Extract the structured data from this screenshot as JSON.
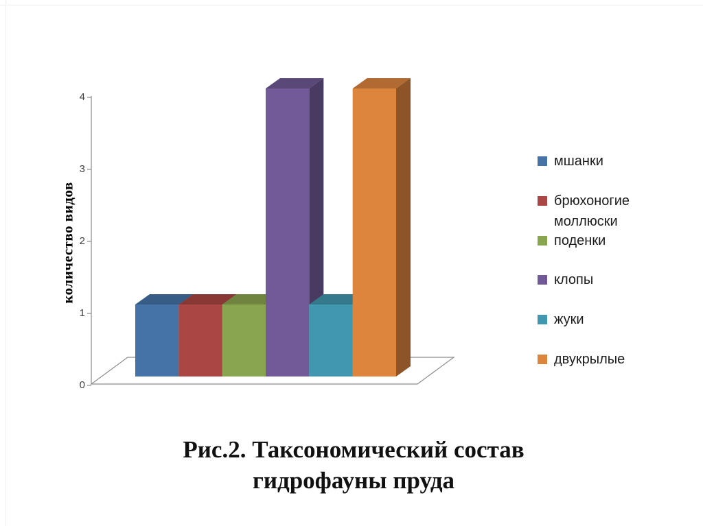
{
  "frame": {
    "border_color": "#f0eeee"
  },
  "chart_data": {
    "type": "bar",
    "projection": "3d",
    "title": "",
    "ylabel": "количество видов",
    "xlabel": "",
    "ylim": [
      0,
      4
    ],
    "yticks": [
      0,
      1,
      2,
      3,
      4
    ],
    "grid": false,
    "legend_position": "right",
    "axis_color": "#8c8c8c",
    "tick_label_color": "#3f3f3f",
    "legend_text_color": "#1c1c1c",
    "categories": [
      "мшанки",
      "брюхоногие моллюски",
      "поденки",
      "клопы",
      "жуки",
      "двукрылые"
    ],
    "values": [
      1,
      1,
      1,
      4,
      1,
      4
    ],
    "series": [
      {
        "name": "мшанки",
        "value": 1,
        "color": "#4573a7"
      },
      {
        "name": "брюхоногие моллюски",
        "value": 1,
        "color": "#aa4744"
      },
      {
        "name": "поденки",
        "value": 1,
        "color": "#8aa54f"
      },
      {
        "name": "клопы",
        "value": 4,
        "color": "#715a97"
      },
      {
        "name": "жуки",
        "value": 1,
        "color": "#4297b0"
      },
      {
        "name": "двукрылые",
        "value": 4,
        "color": "#dd843d"
      }
    ]
  },
  "caption": {
    "line1": "Рис.2. Таксономический состав",
    "line2": "гидрофауны пруда"
  }
}
